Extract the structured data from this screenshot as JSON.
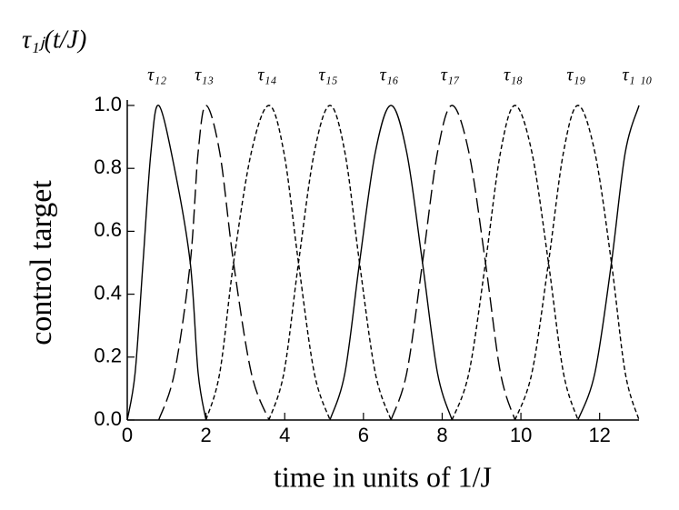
{
  "chart_data": {
    "type": "line",
    "title": "τ₁ⱼ(t/J)",
    "xlabel": "time in units of 1/J",
    "ylabel": "control target",
    "color": "#000000",
    "xlim": [
      0,
      13
    ],
    "ylim": [
      0,
      1
    ],
    "xticks": [
      0,
      2,
      4,
      6,
      8,
      10,
      12
    ],
    "yticks": [
      {
        "value": 0,
        "label": "0.0"
      },
      {
        "value": 0.2,
        "label": "0.2"
      },
      {
        "value": 0.4,
        "label": "0.4"
      },
      {
        "value": 0.6,
        "label": "0.6"
      },
      {
        "value": 0.8,
        "label": "0.8"
      },
      {
        "value": 1,
        "label": "1.0"
      }
    ],
    "series": [
      {
        "name": "τ₁₂",
        "dash": "solid",
        "x": [
          0,
          0.2,
          0.4,
          0.6,
          0.8,
          1.2,
          1.6,
          1.8,
          2.0
        ],
        "values": [
          0,
          0.15,
          0.5,
          0.85,
          1,
          0.8,
          0.5,
          0.15,
          0
        ]
      },
      {
        "name": "τ₁₃",
        "dash": "long",
        "x": [
          0.8,
          1.2,
          1.6,
          1.8,
          2.0,
          2.35,
          2.7,
          3.15,
          3.6
        ],
        "values": [
          0,
          0.15,
          0.5,
          0.85,
          1,
          0.85,
          0.5,
          0.15,
          0
        ]
      },
      {
        "name": "τ₁₄",
        "dash": "short",
        "x": [
          2.0,
          2.35,
          2.7,
          3.15,
          3.6,
          3.98,
          4.35,
          4.75,
          5.15
        ],
        "values": [
          0,
          0.15,
          0.5,
          0.85,
          1,
          0.85,
          0.5,
          0.15,
          0
        ]
      },
      {
        "name": "τ₁₅",
        "dash": "short",
        "x": [
          3.6,
          3.98,
          4.35,
          4.75,
          5.15,
          5.53,
          5.9,
          6.3,
          6.7
        ],
        "values": [
          0,
          0.15,
          0.5,
          0.85,
          1,
          0.85,
          0.5,
          0.15,
          0
        ]
      },
      {
        "name": "τ₁₆",
        "dash": "solid",
        "x": [
          5.15,
          5.53,
          5.9,
          6.3,
          6.7,
          7.1,
          7.5,
          7.88,
          8.25
        ],
        "values": [
          0,
          0.15,
          0.5,
          0.85,
          1,
          0.85,
          0.5,
          0.15,
          0
        ]
      },
      {
        "name": "τ₁₇",
        "dash": "long",
        "x": [
          6.7,
          7.1,
          7.5,
          7.88,
          8.25,
          8.68,
          9.1,
          9.48,
          9.85
        ],
        "values": [
          0,
          0.15,
          0.5,
          0.85,
          1,
          0.85,
          0.5,
          0.15,
          0
        ]
      },
      {
        "name": "τ₁₈",
        "dash": "short",
        "x": [
          8.25,
          8.68,
          9.1,
          9.48,
          9.85,
          10.28,
          10.7,
          11.08,
          11.45
        ],
        "values": [
          0,
          0.15,
          0.5,
          0.85,
          1,
          0.85,
          0.5,
          0.15,
          0
        ]
      },
      {
        "name": "τ₁₉",
        "dash": "short",
        "x": [
          9.85,
          10.28,
          10.7,
          11.08,
          11.45,
          11.88,
          12.3,
          12.65,
          13.0
        ],
        "values": [
          0,
          0.15,
          0.5,
          0.85,
          1,
          0.85,
          0.5,
          0.15,
          0
        ]
      },
      {
        "name": "τ₁ ₁₀",
        "dash": "solid",
        "x": [
          11.45,
          11.88,
          12.3,
          12.65,
          13.0
        ],
        "values": [
          0,
          0.15,
          0.5,
          0.85,
          1
        ]
      }
    ]
  }
}
